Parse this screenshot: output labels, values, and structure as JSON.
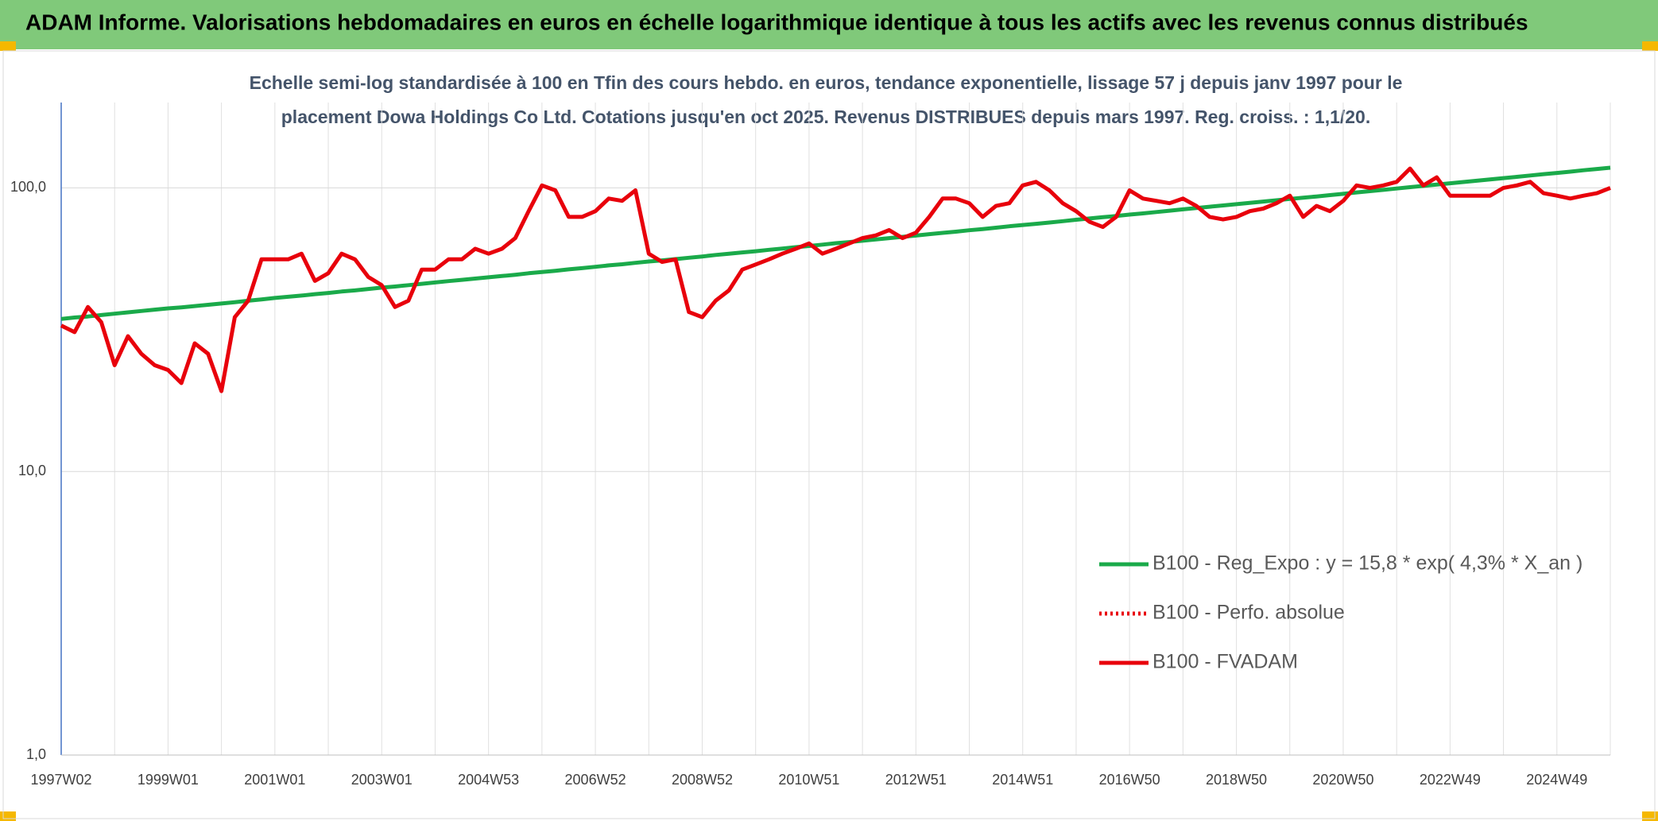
{
  "chart_data": {
    "type": "line",
    "title": "ADAM Informe. Valorisations hebdomadaires en euros en échelle logarithmique identique à tous les actifs avec les revenus connus distribués",
    "subtitle": [
      "Echelle semi-log standardisée à 100 en Tfin des cours hebdo. en euros, tendance exponentielle, lissage 57 j depuis janv 1997 pour le",
      "placement Dowa Holdings Co Ltd. Cotations jusqu'en oct 2025. Revenus DISTRIBUES depuis mars 1997. Reg. croiss. : 1,1/20."
    ],
    "log_y": true,
    "grid": true,
    "ylim": [
      1,
      200
    ],
    "yticks": [
      {
        "value": 1,
        "label": "1,0"
      },
      {
        "value": 10,
        "label": "10,0"
      },
      {
        "value": 100,
        "label": "100,0"
      }
    ],
    "categories": [
      "1997W02",
      null,
      null,
      null,
      null,
      null,
      null,
      null,
      "1999W01",
      null,
      null,
      null,
      null,
      null,
      null,
      null,
      "2001W01",
      null,
      null,
      null,
      null,
      null,
      null,
      null,
      "2003W01",
      null,
      null,
      null,
      null,
      null,
      null,
      null,
      "2004W53",
      null,
      null,
      null,
      null,
      null,
      null,
      null,
      "2006W52",
      null,
      null,
      null,
      null,
      null,
      null,
      null,
      "2008W52",
      null,
      null,
      null,
      null,
      null,
      null,
      null,
      "2010W51",
      null,
      null,
      null,
      null,
      null,
      null,
      null,
      "2012W51",
      null,
      null,
      null,
      null,
      null,
      null,
      null,
      "2014W51",
      null,
      null,
      null,
      null,
      null,
      null,
      null,
      "2016W50",
      null,
      null,
      null,
      null,
      null,
      null,
      null,
      "2018W50",
      null,
      null,
      null,
      null,
      null,
      null,
      null,
      "2020W50",
      null,
      null,
      null,
      null,
      null,
      null,
      null,
      "2022W49",
      null,
      null,
      null,
      null,
      null,
      null,
      null,
      "2024W49",
      null,
      null,
      null,
      null
    ],
    "legend_position": "right",
    "series": [
      {
        "name": "B100 - Reg_Expo : y = 15,8 * exp( 4,3% *  X_an )",
        "color": "#1aaa4a",
        "style": "solid",
        "values": [
          34.5,
          34.9,
          35.2,
          35.6,
          36.0,
          36.4,
          36.8,
          37.2,
          37.6,
          37.9,
          38.3,
          38.7,
          39.1,
          39.5,
          40.0,
          40.4,
          40.9,
          41.3,
          41.7,
          42.2,
          42.6,
          43.1,
          43.5,
          44.0,
          44.5,
          44.9,
          45.4,
          45.9,
          46.4,
          46.9,
          47.4,
          47.9,
          48.4,
          48.9,
          49.4,
          50.0,
          50.5,
          51.0,
          51.6,
          52.1,
          52.7,
          53.3,
          53.8,
          54.4,
          55.0,
          55.5,
          56.1,
          56.7,
          57.3,
          58.0,
          58.6,
          59.2,
          59.8,
          60.5,
          61.1,
          61.8,
          62.4,
          63.1,
          63.8,
          64.4,
          65.1,
          65.8,
          66.5,
          67.2,
          67.9,
          68.7,
          69.4,
          70.1,
          70.9,
          71.6,
          72.4,
          73.2,
          74.0,
          74.7,
          75.5,
          76.3,
          77.2,
          78.0,
          78.8,
          79.6,
          80.5,
          81.3,
          82.2,
          83.1,
          84.0,
          84.9,
          85.8,
          86.7,
          87.6,
          88.5,
          89.5,
          90.4,
          91.4,
          92.4,
          93.3,
          94.3,
          95.3,
          96.4,
          97.4,
          98.4,
          99.5,
          100.6,
          101.6,
          102.7,
          103.8,
          104.9,
          106.0,
          107.1,
          108.3,
          109.4,
          110.6,
          111.8,
          112.9,
          114.1,
          115.4,
          116.6,
          117.8
        ]
      },
      {
        "name": "B100 - Perfo. absolue",
        "color": "#e8000b",
        "style": "dotted"
      },
      {
        "name": "B100 - FVADAM",
        "color": "#e8000b",
        "style": "solid",
        "values": [
          32.7,
          31,
          38,
          33.6,
          23.7,
          30,
          26,
          23.7,
          22.8,
          20.5,
          28.3,
          26,
          19.2,
          35,
          40,
          56,
          56,
          56,
          58.6,
          47,
          50,
          58.6,
          56,
          48.5,
          45.4,
          38,
          40,
          51.5,
          51.5,
          56,
          56,
          61,
          58.6,
          61,
          66.5,
          82.8,
          102,
          98,
          79,
          79,
          82.8,
          91.7,
          90,
          98,
          58.6,
          54.8,
          56,
          36.5,
          35,
          40,
          43.5,
          51.5,
          53.7,
          56,
          58.6,
          61,
          63.7,
          58.6,
          61,
          63.7,
          66.5,
          68,
          71,
          66.5,
          69.5,
          79,
          91.7,
          91.7,
          88.3,
          79,
          86.4,
          88.3,
          102,
          105,
          98,
          88.3,
          82.8,
          75.9,
          72.8,
          79,
          98,
          91.7,
          90,
          88.3,
          91.7,
          86.4,
          79,
          77.4,
          79,
          82.8,
          84.5,
          88.3,
          93.9,
          79,
          86.4,
          82.8,
          90,
          102,
          100,
          102,
          105,
          117,
          102,
          109,
          93.9,
          93.9,
          93.9,
          93.9,
          100,
          102,
          105,
          95.8,
          93.9,
          91.7,
          93.9,
          95.8,
          100
        ]
      }
    ]
  }
}
